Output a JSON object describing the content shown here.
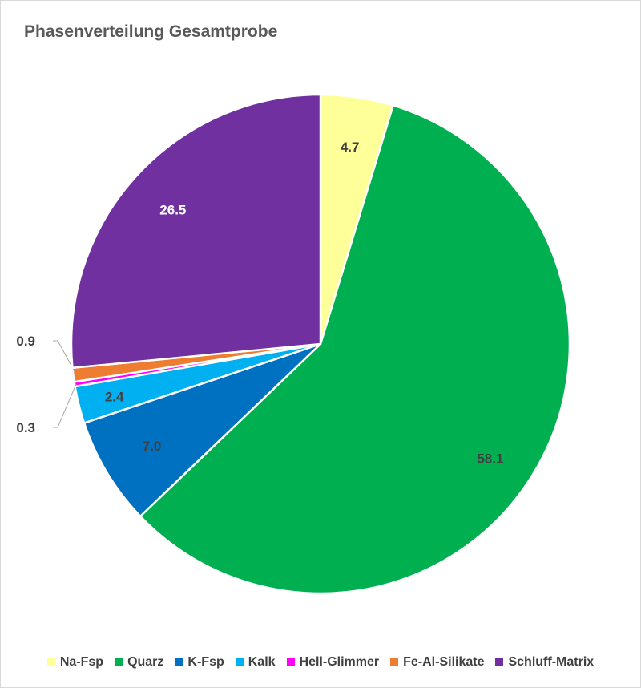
{
  "chart_data": {
    "type": "pie",
    "title": "Phasenverteilung Gesamtprobe",
    "legend_position": "bottom",
    "slices": [
      {
        "name": "Na-Fsp",
        "value": 4.7,
        "label": "4.7",
        "color": "#ffff99"
      },
      {
        "name": "Quarz",
        "value": 58.1,
        "label": "58.1",
        "color": "#00b050"
      },
      {
        "name": "K-Fsp",
        "value": 7.0,
        "label": "7.0",
        "color": "#0070c0"
      },
      {
        "name": "Kalk",
        "value": 2.4,
        "label": "2.4",
        "color": "#00b0f0"
      },
      {
        "name": "Hell-Glimmer",
        "value": 0.3,
        "label": "0.3",
        "color": "#ff00ff"
      },
      {
        "name": "Fe-Al-Silikate",
        "value": 0.9,
        "label": "0.9",
        "color": "#ed7d31"
      },
      {
        "name": "Schluff-Matrix",
        "value": 26.5,
        "label": "26.5",
        "color": "#7030a0"
      }
    ]
  }
}
